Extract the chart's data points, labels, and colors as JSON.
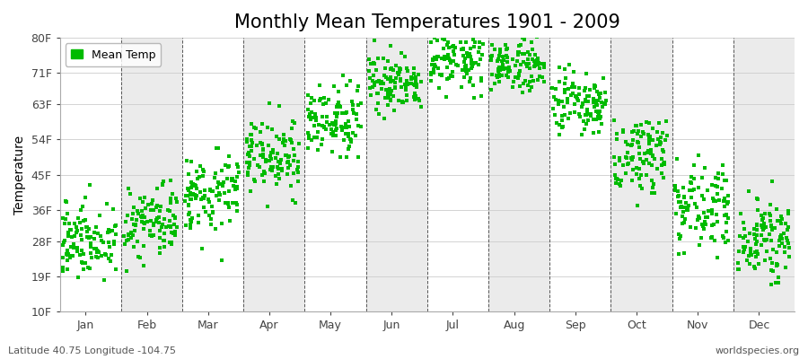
{
  "title": "Monthly Mean Temperatures 1901 - 2009",
  "ylabel": "Temperature",
  "x_tick_labels": [
    "Jan",
    "Feb",
    "Mar",
    "Apr",
    "May",
    "Jun",
    "Jul",
    "Aug",
    "Sep",
    "Oct",
    "Nov",
    "Dec"
  ],
  "x_tick_positions": [
    0.42,
    1.42,
    2.42,
    3.42,
    4.42,
    5.42,
    6.42,
    7.42,
    8.42,
    9.42,
    10.42,
    11.42
  ],
  "y_ticks": [
    10,
    19,
    28,
    36,
    45,
    54,
    63,
    71,
    80
  ],
  "y_tick_labels": [
    "10F",
    "19F",
    "28F",
    "36F",
    "45F",
    "54F",
    "63F",
    "71F",
    "80F"
  ],
  "ylim": [
    10,
    80
  ],
  "xlim": [
    0,
    12
  ],
  "dot_color": "#00BB00",
  "bg_color": "#FFFFFF",
  "plot_bg_color_even": "#FFFFFF",
  "plot_bg_color_odd": "#EBEBEB",
  "legend_label": "Mean Temp",
  "footer_left": "Latitude 40.75 Longitude -104.75",
  "footer_right": "worldspecies.org",
  "title_fontsize": 15,
  "axis_fontsize": 10,
  "tick_fontsize": 9,
  "footer_fontsize": 8,
  "monthly_means": [
    28,
    32,
    40,
    49,
    58,
    68,
    74,
    72,
    62,
    50,
    37,
    28
  ],
  "monthly_stds": [
    5,
    5,
    5,
    5,
    4,
    4,
    3.5,
    3.5,
    4,
    5,
    5,
    5
  ]
}
